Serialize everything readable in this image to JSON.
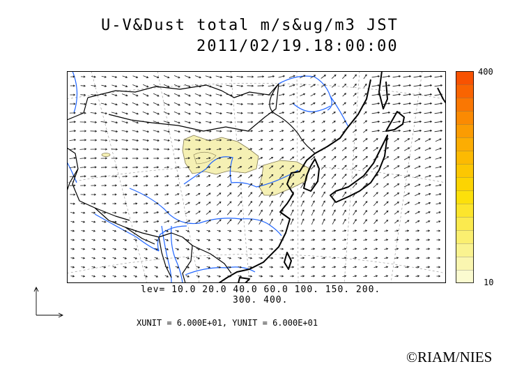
{
  "title": {
    "line1": "U-V&Dust total m/s&ug/m3 JST",
    "line2": "2011/02/19.18:00:00"
  },
  "colorbar": {
    "max_label": "400",
    "min_label": "10",
    "colors": [
      "#fbfbd0",
      "#faf6b0",
      "#faf390",
      "#fbef70",
      "#fbea4e",
      "#fce52c",
      "#fce00b",
      "#fcd402",
      "#fcc702",
      "#fcba02",
      "#fcad02",
      "#fb9c02",
      "#fb8a02",
      "#fa7702",
      "#f96401",
      "#f85201"
    ]
  },
  "legend": {
    "levels_line1": "lev= 10.0 20.0 40.0 60.0 100. 150. 200.",
    "levels_line2": "300. 400.",
    "units": "XUNIT = 6.000E+01, YUNIT = 6.000E+01"
  },
  "credit": "©RIAM/NIES",
  "colors": {
    "coast": "#000000",
    "river": "#1e64ff",
    "dust_fill": "#f5f0b4",
    "dust_line": "#807850"
  }
}
